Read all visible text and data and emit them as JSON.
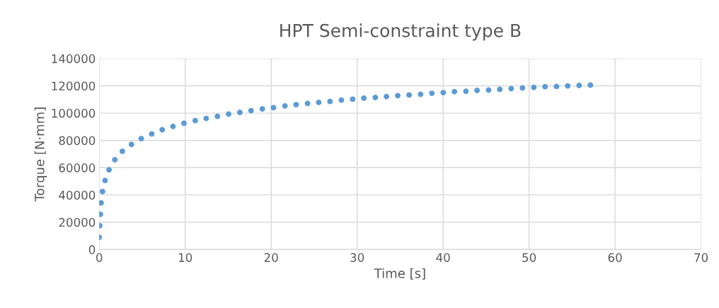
{
  "chart_data": {
    "type": "scatter",
    "title": "HPT Semi-constraint type B",
    "xlabel": "Time [s]",
    "ylabel": "Torque [N·mm]",
    "xlim": [
      0,
      70
    ],
    "xticks": [
      0,
      10,
      20,
      30,
      40,
      50,
      60,
      70
    ],
    "ylim": [
      0,
      140000
    ],
    "yticks": [
      0,
      20000,
      40000,
      60000,
      80000,
      100000,
      120000,
      140000
    ],
    "grid": true,
    "marker": "circle",
    "legend": false,
    "series": [
      {
        "color": "#5b9bd5",
        "x": [
          0,
          0.06,
          0.14,
          0.22,
          0.38,
          0.68,
          1.14,
          1.82,
          2.69,
          3.75,
          4.89,
          6.11,
          7.33,
          8.58,
          9.86,
          11.17,
          12.44,
          13.75,
          15.05,
          16.36,
          17.66,
          18.97,
          20.27,
          21.6,
          22.9,
          24.23,
          25.53,
          26.84,
          28.17,
          29.48,
          30.78,
          32.11,
          33.41,
          34.72,
          36.05,
          37.38,
          38.69,
          40.02,
          41.32,
          42.65,
          43.95,
          45.29,
          46.59,
          47.92,
          49.23,
          50.55,
          51.86,
          53.19,
          54.49,
          55.82,
          57.13
        ],
        "values": [
          8900,
          17400,
          25800,
          34100,
          42500,
          50600,
          58400,
          65800,
          72000,
          77000,
          81300,
          84700,
          87700,
          90200,
          92500,
          94500,
          96100,
          97600,
          99300,
          100500,
          101800,
          103000,
          104000,
          105200,
          106200,
          107000,
          107800,
          108500,
          109500,
          110200,
          110900,
          111400,
          112100,
          112800,
          113300,
          113800,
          114500,
          115000,
          115700,
          116000,
          116600,
          116900,
          117400,
          117900,
          118400,
          118800,
          119300,
          119500,
          119900,
          120200,
          120500
        ]
      }
    ]
  }
}
